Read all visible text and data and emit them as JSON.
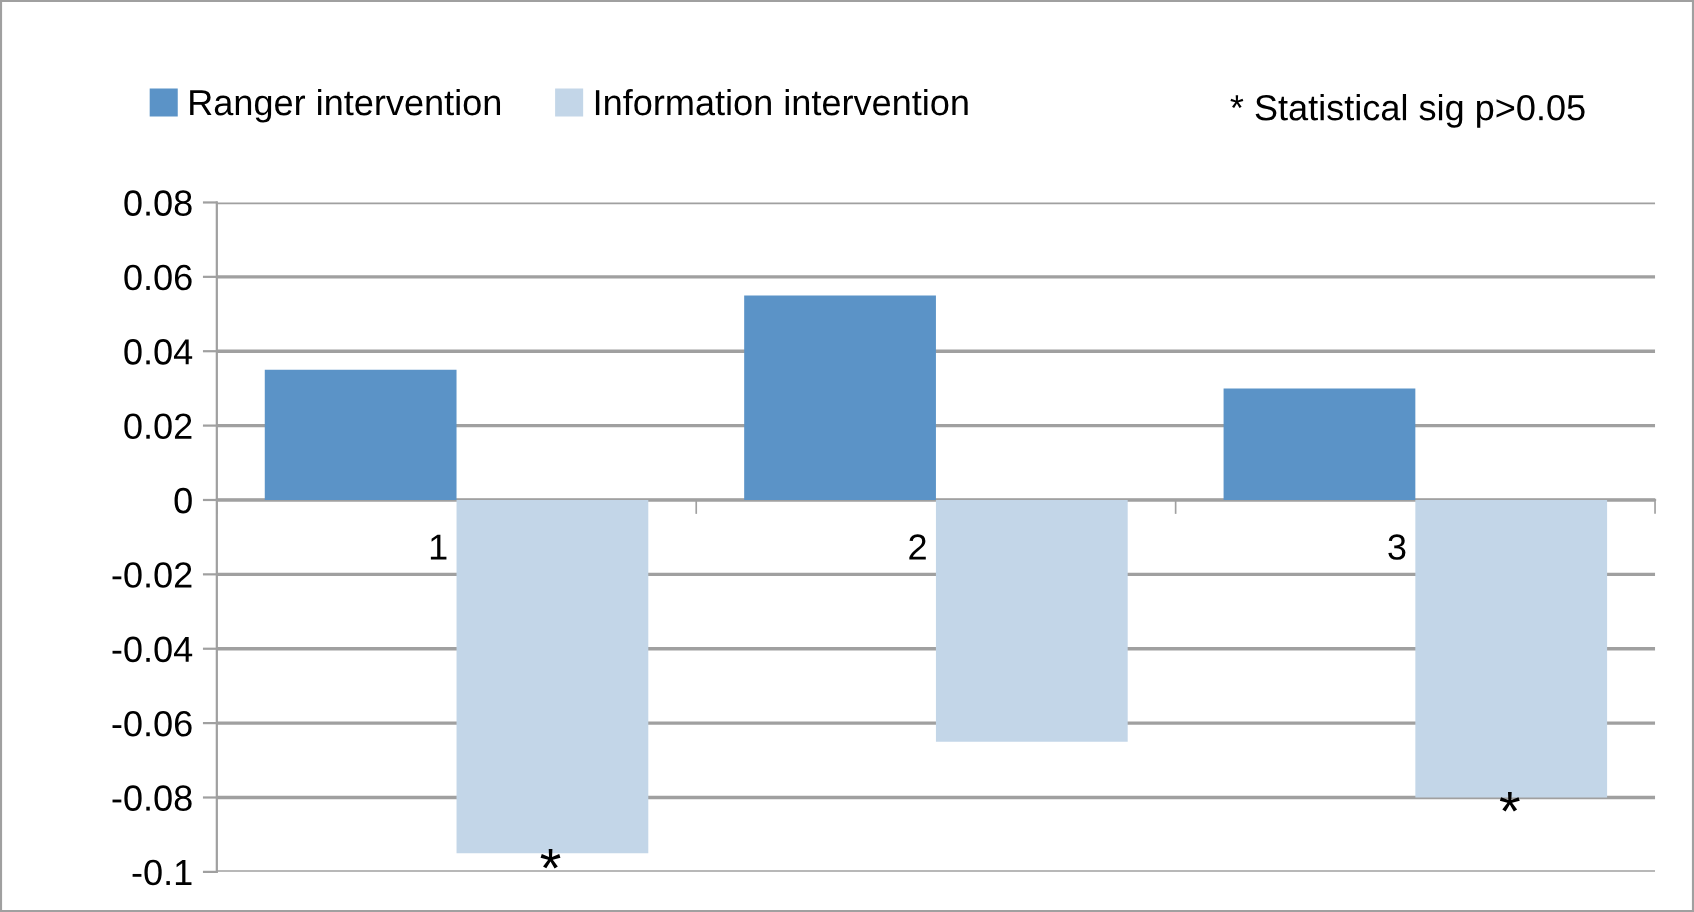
{
  "chart_data": {
    "type": "bar",
    "categories": [
      "1",
      "2",
      "3"
    ],
    "series": [
      {
        "name": "Ranger intervention",
        "color": "#5b93c7",
        "values": [
          0.035,
          0.055,
          0.03
        ]
      },
      {
        "name": "Information intervention",
        "color": "#c3d6e8",
        "values": [
          -0.095,
          -0.065,
          -0.08
        ]
      }
    ],
    "ylim": [
      -0.1,
      0.08
    ],
    "yticks": [
      {
        "value": -0.1,
        "label": "-0.1"
      },
      {
        "value": -0.08,
        "label": "-0.08"
      },
      {
        "value": -0.06,
        "label": "-0.06"
      },
      {
        "value": -0.04,
        "label": "-0.04"
      },
      {
        "value": -0.02,
        "label": "-0.02"
      },
      0,
      {
        "value": 0.02,
        "label": "0.02"
      },
      {
        "value": 0.04,
        "label": "0.04"
      },
      {
        "value": 0.06,
        "label": "0.06"
      },
      {
        "value": 0.08,
        "label": "0.08"
      }
    ],
    "grid": "y",
    "legend": "top",
    "annotations": [
      "* Statistical sig p>0.05",
      "*",
      "*"
    ]
  }
}
